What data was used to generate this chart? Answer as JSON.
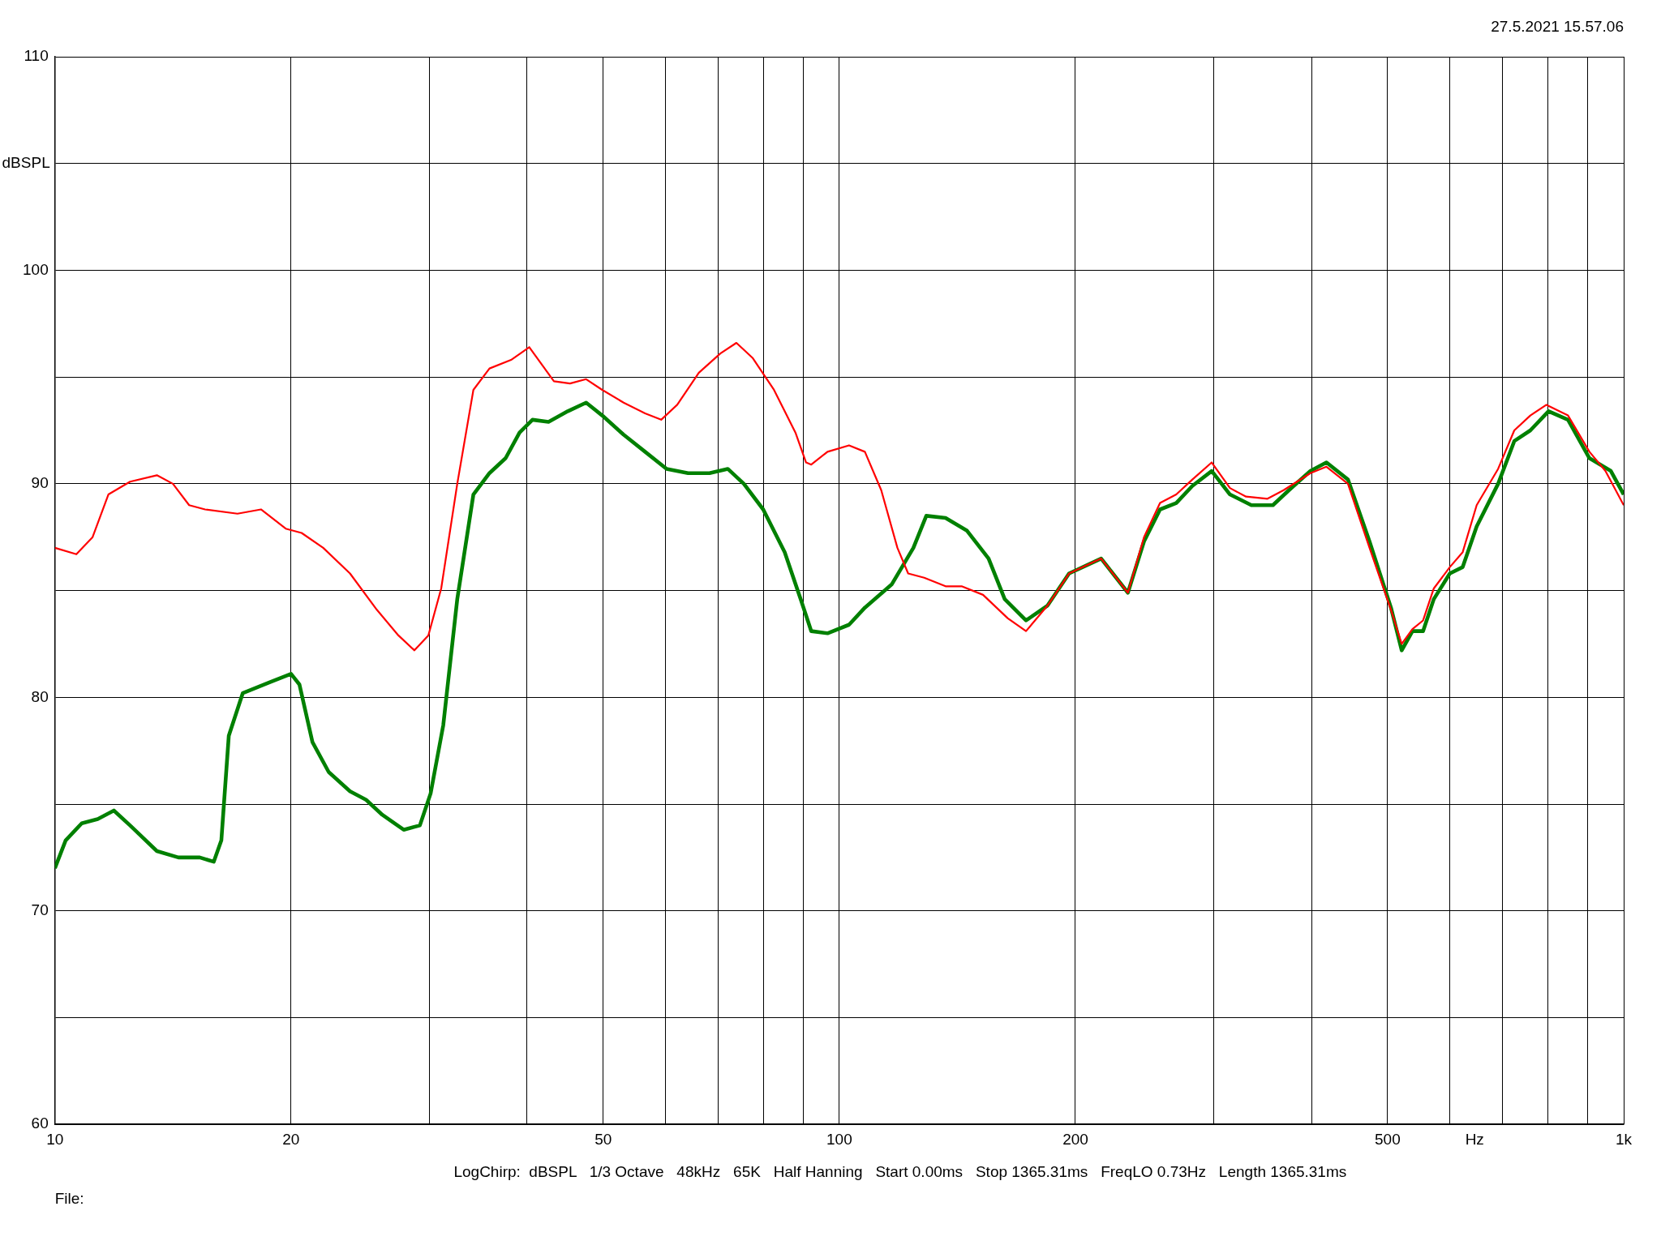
{
  "chart_data": {
    "type": "line",
    "xlabel": "Hz",
    "ylabel": "dBSPL",
    "annotations": [
      "27.5.2021 15.57.06",
      "LogChirp:  dBSPL   1/3 Octave   48kHz   65K   Half Hanning   Start 0.00ms   Stop 1365.31ms   FreqLO 0.73Hz   Length 1365.31ms",
      "File:"
    ],
    "log": "x",
    "grid": true,
    "xlim": [
      10,
      1000
    ],
    "ylim": [
      60,
      110
    ],
    "xticks": [
      10,
      20,
      {
        "value": 30,
        "label": null
      },
      {
        "value": 40,
        "label": null
      },
      50,
      {
        "value": 60,
        "label": null
      },
      {
        "value": 70,
        "label": null
      },
      {
        "value": 80,
        "label": null
      },
      {
        "value": 90,
        "label": null
      },
      100,
      200,
      {
        "value": 300,
        "label": null
      },
      {
        "value": 400,
        "label": null
      },
      500,
      {
        "value": 600,
        "label": null
      },
      {
        "value": 700,
        "label": null
      },
      {
        "value": 800,
        "label": null
      },
      {
        "value": 900,
        "label": null
      },
      {
        "value": 1000,
        "label": "1k"
      }
    ],
    "yticks": [
      60,
      {
        "value": 65,
        "label": null
      },
      70,
      {
        "value": 75,
        "label": null
      },
      80,
      {
        "value": 85,
        "label": null
      },
      90,
      {
        "value": 95,
        "label": null
      },
      100,
      {
        "value": 105,
        "label": null
      },
      110
    ],
    "series": [
      {
        "color": "#ff0000",
        "x": [
          10,
          10.65,
          11.17,
          11.7,
          12.47,
          13.49,
          14.14,
          14.83,
          15.54,
          17.09,
          18.31,
          19.69,
          20.63,
          21.98,
          23.78,
          25.73,
          27.41,
          28.73,
          29.93,
          31.08,
          32.58,
          34.16,
          35.81,
          38.15,
          40.25,
          43.27,
          45.36,
          47.56,
          49.86,
          53.09,
          56.55,
          59.28,
          62.14,
          66.21,
          70.52,
          73.93,
          77.51,
          82.55,
          87.92,
          90.7,
          92.1,
          96.6,
          102.9,
          107.8,
          113.1,
          118.6,
          122.4,
          128.3,
          136.6,
          143.2,
          152.5,
          164,
          173,
          184.3,
          196.3,
          215.7,
          233.3,
          244.6,
          256.4,
          268.9,
          281.9,
          298.4,
          314.8,
          330,
          351.5,
          368.5,
          398.7,
          417.9,
          445.1,
          474.2,
          505,
          521.2,
          537.9,
          554.9,
          572.7,
          600.3,
          623.4,
          649.5,
          691.7,
          725.3,
          760.3,
          797.1,
          849.2,
          904.3,
          947.8,
          1000
        ],
        "values": [
          87.0,
          86.7,
          87.5,
          89.5,
          90.1,
          90.4,
          90.0,
          89.0,
          88.8,
          88.6,
          88.8,
          87.9,
          87.7,
          87.0,
          85.8,
          84.1,
          82.9,
          82.2,
          82.9,
          85.1,
          90.0,
          94.4,
          95.4,
          95.8,
          96.4,
          94.8,
          94.7,
          94.9,
          94.4,
          93.8,
          93.3,
          93.0,
          93.7,
          95.2,
          96.1,
          96.6,
          95.9,
          94.4,
          92.4,
          91.0,
          90.9,
          91.5,
          91.8,
          91.5,
          89.7,
          87.0,
          85.8,
          85.6,
          85.2,
          85.2,
          84.8,
          83.7,
          83.1,
          84.3,
          85.8,
          86.5,
          84.9,
          87.5,
          89.1,
          89.5,
          90.2,
          91.0,
          89.8,
          89.4,
          89.3,
          89.7,
          90.5,
          90.8,
          90.0,
          87.0,
          84.1,
          82.5,
          83.2,
          83.6,
          85.1,
          86.1,
          86.8,
          89.0,
          90.7,
          92.5,
          93.2,
          93.7,
          93.2,
          91.5,
          90.6,
          89.0
        ]
      },
      {
        "color": "#008000",
        "x": [
          10,
          10.32,
          10.82,
          11.34,
          11.89,
          12.47,
          13.49,
          14.37,
          15.3,
          15.94,
          16.3,
          16.66,
          17.36,
          18.77,
          20.0,
          20.5,
          21.3,
          22.34,
          23.78,
          24.93,
          26.14,
          27.84,
          29.19,
          30.13,
          31.27,
          32.58,
          34.16,
          35.81,
          37.55,
          39.12,
          40.63,
          42.59,
          45.07,
          47.56,
          49.86,
          53.09,
          56.55,
          60.23,
          64.15,
          68.32,
          72.08,
          75.56,
          79.98,
          85.19,
          89.28,
          92.1,
          96.6,
          102.9,
          107.8,
          116.7,
          124.3,
          129.1,
          136.6,
          145.5,
          155,
          162.5,
          173,
          184.3,
          196.3,
          215.7,
          233.3,
          244.6,
          256.4,
          268.9,
          281.9,
          298.4,
          314.8,
          335.2,
          357.1,
          374.3,
          398.7,
          417.9,
          445.1,
          474.2,
          505,
          521.2,
          537.9,
          554.9,
          572.7,
          600.3,
          623.4,
          649.5,
          691.7,
          725.3,
          760.3,
          802.1,
          849.2,
          904.3,
          963,
          1000
        ],
        "values": [
          72.0,
          73.3,
          74.1,
          74.3,
          74.7,
          74.0,
          72.8,
          72.5,
          72.5,
          72.3,
          73.3,
          78.2,
          80.2,
          80.7,
          81.1,
          80.6,
          77.9,
          76.5,
          75.6,
          75.2,
          74.5,
          73.8,
          74.0,
          75.5,
          78.7,
          84.6,
          89.5,
          90.5,
          91.2,
          92.4,
          93.0,
          92.9,
          93.4,
          93.8,
          93.2,
          92.3,
          91.5,
          90.7,
          90.5,
          90.5,
          90.7,
          90.0,
          88.8,
          86.8,
          84.6,
          83.1,
          83.0,
          83.4,
          84.2,
          85.3,
          87.0,
          88.5,
          88.4,
          87.8,
          86.5,
          84.6,
          83.6,
          84.3,
          85.8,
          86.5,
          84.9,
          87.3,
          88.8,
          89.1,
          89.9,
          90.6,
          89.5,
          89.0,
          89.0,
          89.7,
          90.6,
          91.0,
          90.2,
          87.3,
          84.2,
          82.2,
          83.1,
          83.1,
          84.6,
          85.8,
          86.1,
          88.0,
          90.0,
          92.0,
          92.5,
          93.4,
          93.0,
          91.2,
          90.6,
          89.5
        ]
      }
    ]
  }
}
